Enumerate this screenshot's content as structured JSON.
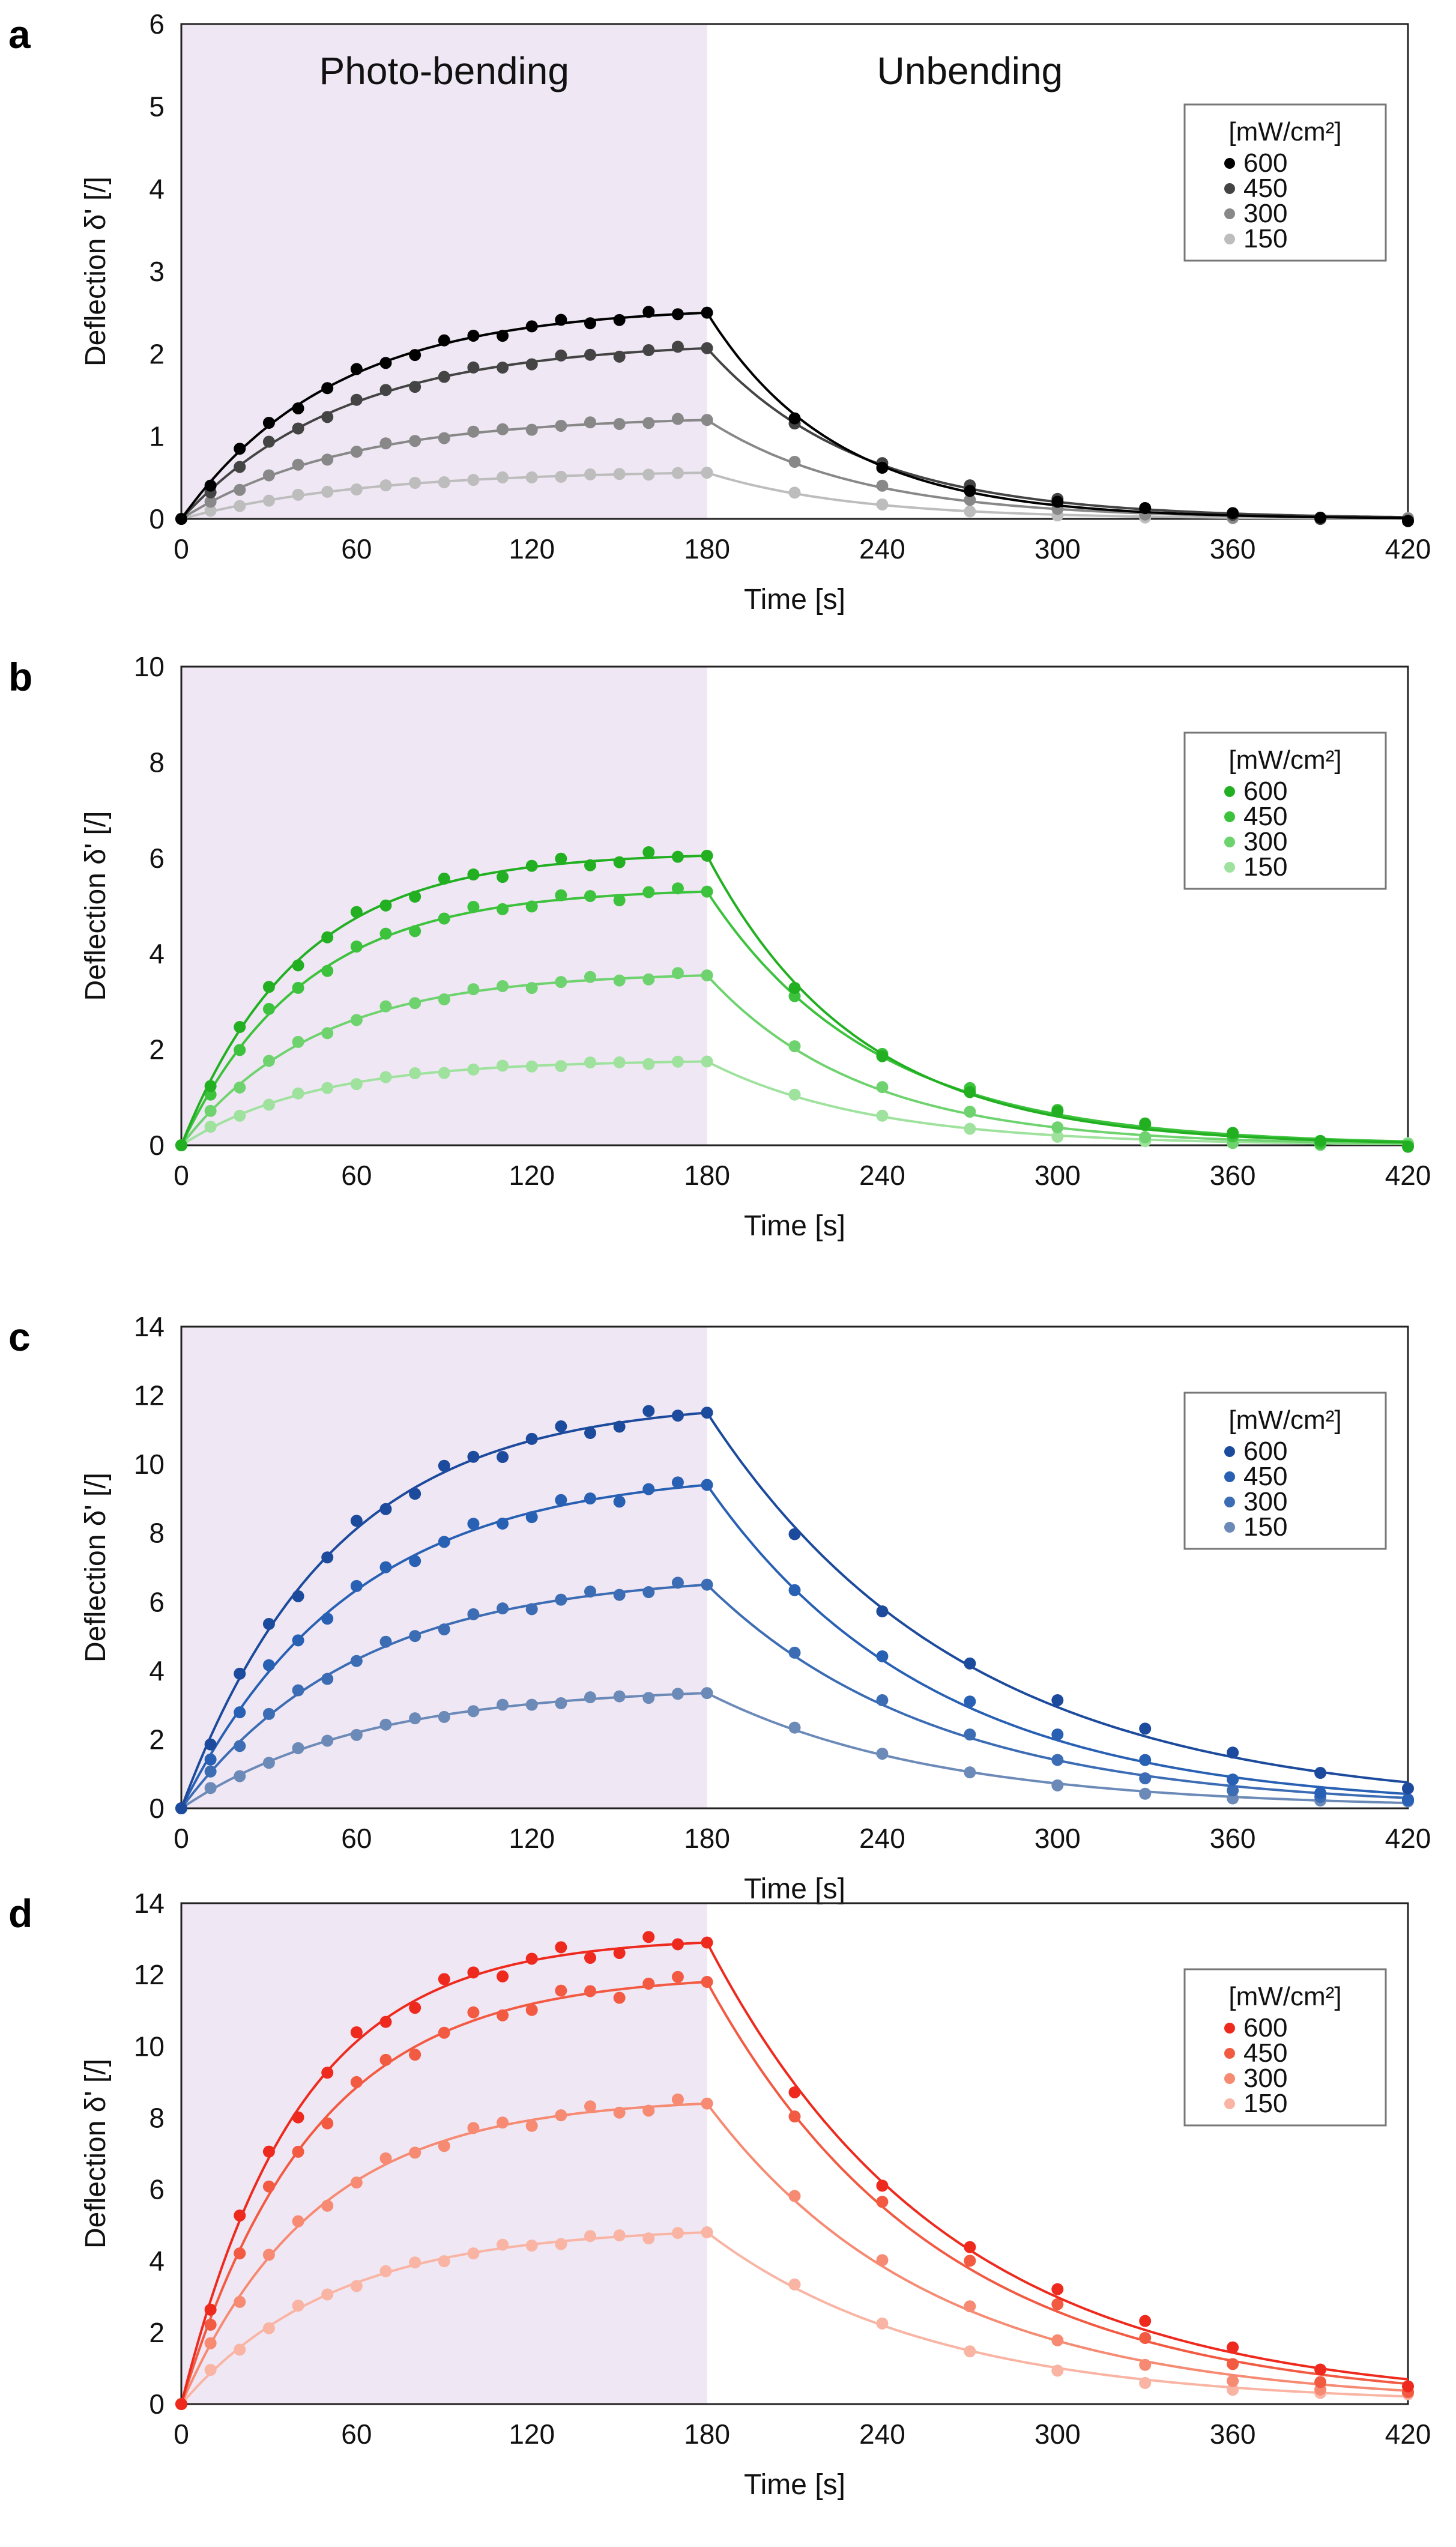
{
  "chart_data": [
    {
      "type": "line",
      "panel": "a",
      "xlabel": "Time [s]",
      "ylabel": "Deflection δ' [/]",
      "xlim": [
        0,
        420
      ],
      "ylim": [
        0,
        6
      ],
      "xticks": [
        "0",
        "60",
        "120",
        "180",
        "240",
        "300",
        "360",
        "420"
      ],
      "yticks": [
        "0",
        "1",
        "2",
        "3",
        "4",
        "5",
        "6"
      ],
      "regions": [
        "Photo-bending",
        "Unbending"
      ],
      "shaded_interval": [
        0,
        180
      ],
      "shade_color": "#efe7f3",
      "legend_title": "[mW/cm²]",
      "legend_position": "top-right",
      "model": "bending: y180*(1-exp(-t/tau_bend))/(1-exp(-180/tau_bend)); unbending: y180*exp(-(t-180)/tau_unbend)",
      "series": [
        {
          "name": "600",
          "color": "#000000",
          "y180": 2.5,
          "tau_bend": 52,
          "tau_unbend": 44
        },
        {
          "name": "450",
          "color": "#444444",
          "y180": 2.07,
          "tau_bend": 56,
          "tau_unbend": 52
        },
        {
          "name": "300",
          "color": "#888888",
          "y180": 1.2,
          "tau_bend": 56,
          "tau_unbend": 52
        },
        {
          "name": "150",
          "color": "#bdbdbd",
          "y180": 0.56,
          "tau_bend": 62,
          "tau_unbend": 50
        }
      ]
    },
    {
      "type": "line",
      "panel": "b",
      "xlabel": "Time [s]",
      "ylabel": "Deflection δ' [/]",
      "xlim": [
        0,
        420
      ],
      "ylim": [
        0,
        10
      ],
      "xticks": [
        "0",
        "60",
        "120",
        "180",
        "240",
        "300",
        "360",
        "420"
      ],
      "yticks": [
        "0",
        "2",
        "4",
        "6",
        "8",
        "10"
      ],
      "shaded_interval": [
        0,
        180
      ],
      "shade_color": "#efe7f3",
      "legend_title": "[mW/cm²]",
      "legend_position": "top-right",
      "series": [
        {
          "name": "600",
          "color": "#22b022",
          "y180": 6.05,
          "tau_bend": 40,
          "tau_unbend": 52
        },
        {
          "name": "450",
          "color": "#3cc23c",
          "y180": 5.3,
          "tau_bend": 42,
          "tau_unbend": 57
        },
        {
          "name": "300",
          "color": "#6ed36e",
          "y180": 3.55,
          "tau_bend": 46,
          "tau_unbend": 53
        },
        {
          "name": "150",
          "color": "#9ee29e",
          "y180": 1.75,
          "tau_bend": 45,
          "tau_unbend": 56
        }
      ]
    },
    {
      "type": "line",
      "panel": "c",
      "xlabel": "Time [s]",
      "ylabel": "Deflection δ' [/]",
      "xlim": [
        0,
        420
      ],
      "ylim": [
        0,
        14
      ],
      "xticks": [
        "0",
        "60",
        "120",
        "180",
        "240",
        "300",
        "360",
        "420"
      ],
      "yticks": [
        "0",
        "2",
        "4",
        "6",
        "8",
        "10",
        "12",
        "14"
      ],
      "shaded_interval": [
        0,
        180
      ],
      "shade_color": "#efe7f3",
      "legend_title": "[mW/cm²]",
      "legend_position": "top-right",
      "series": [
        {
          "name": "600",
          "color": "#1c4a9c",
          "y180": 11.5,
          "tau_bend": 52,
          "tau_unbend": 88
        },
        {
          "name": "450",
          "color": "#2860b4",
          "y180": 9.4,
          "tau_bend": 58,
          "tau_unbend": 77
        },
        {
          "name": "300",
          "color": "#3c6cb4",
          "y180": 6.5,
          "tau_bend": 60,
          "tau_unbend": 78
        },
        {
          "name": "150",
          "color": "#6c8ab8",
          "y180": 3.35,
          "tau_bend": 62,
          "tau_unbend": 78
        }
      ]
    },
    {
      "type": "line",
      "panel": "d",
      "xlabel": "Time [s]",
      "ylabel": "Deflection δ' [/]",
      "xlim": [
        0,
        420
      ],
      "ylim": [
        0,
        14
      ],
      "xticks": [
        "0",
        "60",
        "120",
        "180",
        "240",
        "300",
        "360",
        "420"
      ],
      "yticks": [
        "0",
        "2",
        "4",
        "6",
        "8",
        "10",
        "12",
        "14"
      ],
      "shaded_interval": [
        0,
        180
      ],
      "shade_color": "#efe7f3",
      "legend_title": "[mW/cm²]",
      "legend_position": "top-right",
      "series": [
        {
          "name": "600",
          "color": "#ee2a1e",
          "y180": 12.9,
          "tau_bend": 40,
          "tau_unbend": 82
        },
        {
          "name": "450",
          "color": "#f25a42",
          "y180": 11.8,
          "tau_bend": 45,
          "tau_unbend": 79
        },
        {
          "name": "300",
          "color": "#f68a72",
          "y180": 8.4,
          "tau_bend": 46,
          "tau_unbend": 77
        },
        {
          "name": "150",
          "color": "#f9b4a4",
          "y180": 4.8,
          "tau_bend": 52,
          "tau_unbend": 77
        }
      ]
    }
  ]
}
